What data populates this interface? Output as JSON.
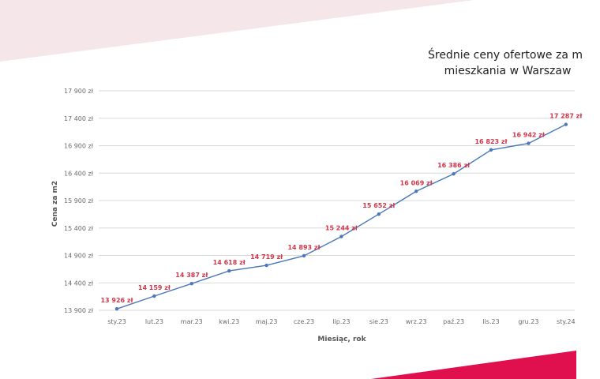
{
  "colors": {
    "line": "#4a78b8",
    "data_label": "#d4374a",
    "grid": "#d9d9d9",
    "decor_top": "#f4e6e9",
    "decor_bottom": "#e0104f"
  },
  "chart_data": {
    "type": "line",
    "title_lines": [
      "Średnie ceny ofertowe za m",
      "mieszkania w Warszaw"
    ],
    "xlabel": "Miesiąc, rok",
    "ylabel": "Cena za m2",
    "ylim": [
      13900,
      17900
    ],
    "yticks": [
      "13 900 zł",
      "14 400 zł",
      "14 900 zł",
      "15 400 zł",
      "15 900 zł",
      "16 400 zł",
      "16 900 zł",
      "17 400 zł",
      "17 900 zł"
    ],
    "ytick_values": [
      13900,
      14400,
      14900,
      15400,
      15900,
      16400,
      16900,
      17400,
      17900
    ],
    "categories": [
      "sty.23",
      "lut.23",
      "mar.23",
      "kwi.23",
      "maj.23",
      "cze.23",
      "lip.23",
      "sie.23",
      "wrz.23",
      "paź.23",
      "lis.23",
      "gru.23",
      "sty.24"
    ],
    "values": [
      13926,
      14159,
      14387,
      14618,
      14719,
      14893,
      15244,
      15652,
      16069,
      16386,
      16823,
      16942,
      17287
    ],
    "data_labels": [
      "13 926 zł",
      "14 159 zł",
      "14 387 zł",
      "14 618 zł",
      "14 719 zł",
      "14 893 zł",
      "15 244 zł",
      "15 652 zł",
      "16 069 zł",
      "16 386 zł",
      "16 823 zł",
      "16 942 zł",
      "17 287 zł"
    ],
    "grid": true,
    "legend": "none"
  }
}
